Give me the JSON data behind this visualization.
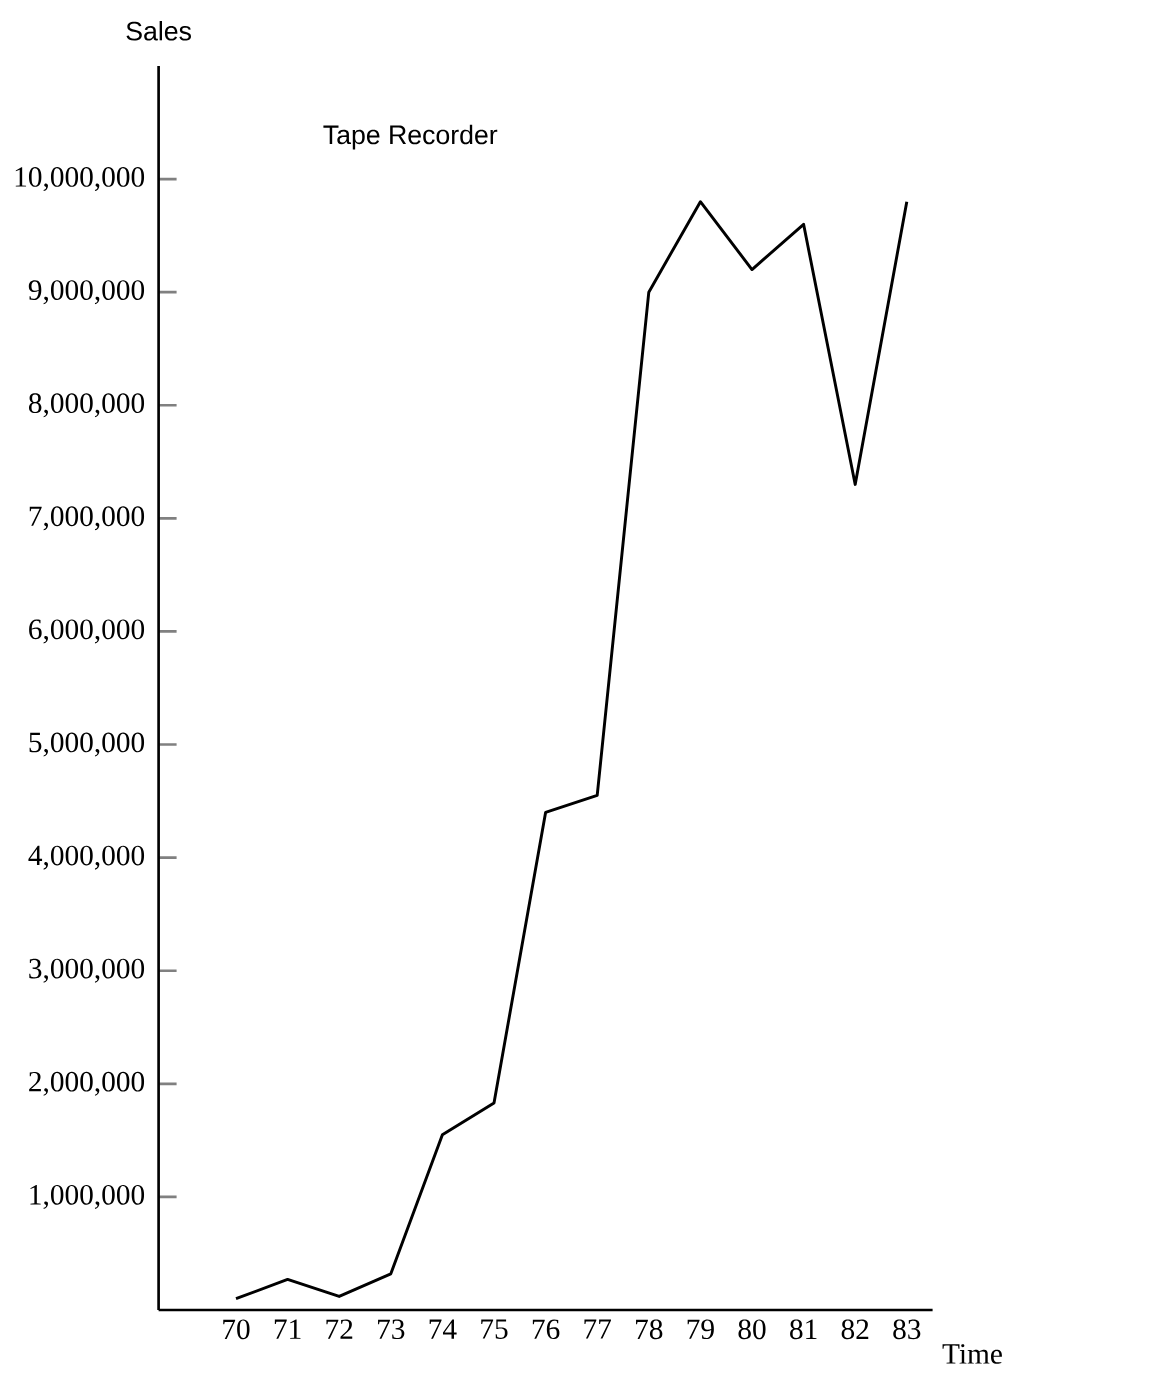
{
  "chart_data": {
    "type": "line",
    "title": "Tape Recorder",
    "xlabel": "Time",
    "ylabel": "Sales",
    "categories": [
      "70",
      "71",
      "72",
      "73",
      "74",
      "75",
      "76",
      "77",
      "78",
      "79",
      "80",
      "81",
      "82",
      "83"
    ],
    "values": [
      100000,
      270000,
      120000,
      320000,
      1550000,
      1830000,
      4400000,
      4550000,
      9000000,
      9800000,
      9200000,
      9600000,
      7300000,
      9800000
    ],
    "color": "#000000",
    "ylim": [
      0,
      11000000
    ],
    "yticks": [
      {
        "value": 1000000,
        "label": "1,000,000"
      },
      {
        "value": 2000000,
        "label": "2,000,000"
      },
      {
        "value": 3000000,
        "label": "3,000,000"
      },
      {
        "value": 4000000,
        "label": "4,000,000"
      },
      {
        "value": 5000000,
        "label": "5,000,000"
      },
      {
        "value": 6000000,
        "label": "6,000,000"
      },
      {
        "value": 7000000,
        "label": "7,000,000"
      },
      {
        "value": 8000000,
        "label": "8,000,000"
      },
      {
        "value": 9000000,
        "label": "9,000,000"
      },
      {
        "value": 10000000,
        "label": "10,000,000"
      }
    ]
  }
}
